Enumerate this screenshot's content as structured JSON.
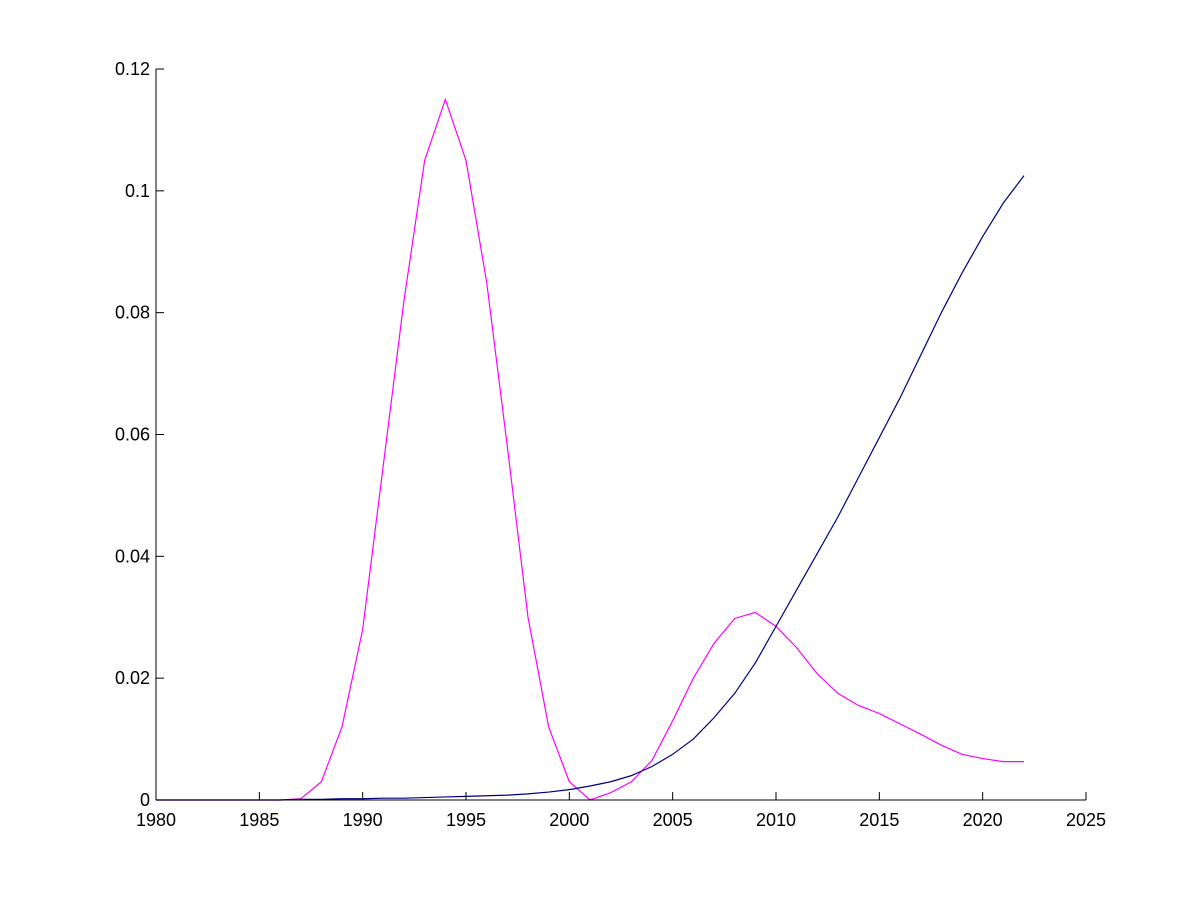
{
  "chart_data": {
    "type": "line",
    "title": "",
    "xlabel": "",
    "ylabel": "",
    "xlim": [
      1980,
      2025
    ],
    "ylim": [
      0,
      0.12
    ],
    "grid": false,
    "xticks": [
      1980,
      1985,
      1990,
      1995,
      2000,
      2005,
      2010,
      2015,
      2020,
      2025
    ],
    "xtick_labels": [
      "1980",
      "1985",
      "1990",
      "1995",
      "2000",
      "2005",
      "2010",
      "2015",
      "2020",
      "2025"
    ],
    "yticks": [
      0,
      0.02,
      0.04,
      0.06,
      0.08,
      0.1,
      0.12
    ],
    "ytick_labels": [
      "0",
      "0.02",
      "0.04",
      "0.06",
      "0.08",
      "0.1",
      "0.12"
    ],
    "series": [
      {
        "color": "#ff00ff",
        "x": [
          1980,
          1981,
          1982,
          1983,
          1984,
          1985,
          1986,
          1987,
          1988,
          1989,
          1990,
          1991,
          1992,
          1993,
          1994,
          1995,
          1996,
          1997,
          1998,
          1999,
          2000,
          2001,
          2002,
          2003,
          2004,
          2005,
          2006,
          2007,
          2008,
          2009,
          2010,
          2011,
          2012,
          2013,
          2014,
          2015,
          2016,
          2017,
          2018,
          2019,
          2020,
          2021,
          2022
        ],
        "y": [
          0,
          0,
          0,
          0,
          0,
          0,
          0,
          0.0002,
          0.003,
          0.012,
          0.028,
          0.055,
          0.082,
          0.105,
          0.115,
          0.105,
          0.085,
          0.058,
          0.03,
          0.012,
          0.003,
          0,
          0.0012,
          0.003,
          0.0065,
          0.013,
          0.02,
          0.0257,
          0.0298,
          0.0308,
          0.0285,
          0.025,
          0.0207,
          0.0175,
          0.0155,
          0.0142,
          0.0125,
          0.0108,
          0.009,
          0.0075,
          0.0068,
          0.0063,
          0.0063
        ]
      },
      {
        "color": "#000080",
        "x": [
          1980,
          1981,
          1982,
          1983,
          1984,
          1985,
          1986,
          1987,
          1988,
          1989,
          1990,
          1991,
          1992,
          1993,
          1994,
          1995,
          1996,
          1997,
          1998,
          1999,
          2000,
          2001,
          2002,
          2003,
          2004,
          2005,
          2006,
          2007,
          2008,
          2009,
          2010,
          2011,
          2012,
          2013,
          2014,
          2015,
          2016,
          2017,
          2018,
          2019,
          2020,
          2021,
          2022
        ],
        "y": [
          0,
          0,
          0,
          0,
          0,
          0,
          0,
          0.0001,
          0.0001,
          0.0002,
          0.0002,
          0.0003,
          0.0003,
          0.0004,
          0.0005,
          0.0006,
          0.0007,
          0.0008,
          0.001,
          0.0013,
          0.0017,
          0.0023,
          0.003,
          0.004,
          0.0055,
          0.0075,
          0.01,
          0.0135,
          0.0175,
          0.0225,
          0.0285,
          0.0345,
          0.0405,
          0.0465,
          0.053,
          0.0595,
          0.066,
          0.073,
          0.08,
          0.0865,
          0.0925,
          0.098,
          0.1025
        ]
      }
    ]
  }
}
